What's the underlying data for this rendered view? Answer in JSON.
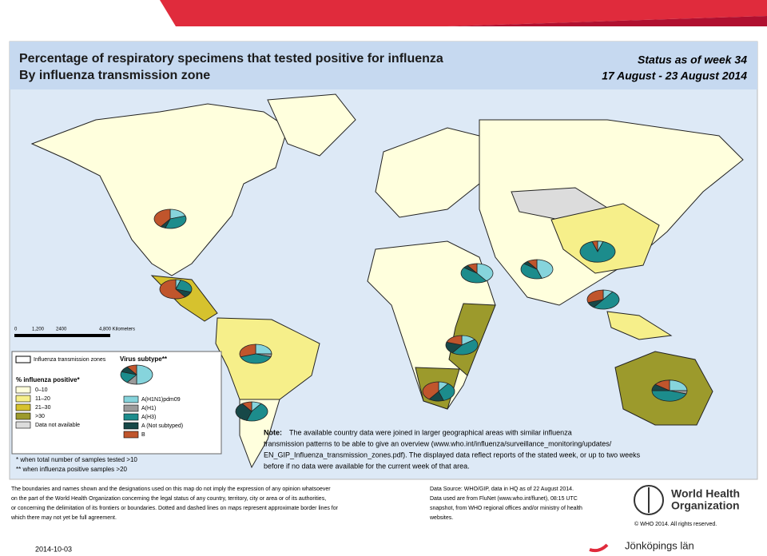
{
  "header": {
    "title": "Percentage of respiratory specimens that tested positive for influenza",
    "subtitle": "By influenza transmission zone",
    "status": "Status as of week 34",
    "period": "17 August - 23 August 2014"
  },
  "scale": {
    "labels": [
      "0",
      "1,200",
      "2400",
      "4,800 Kilometers"
    ]
  },
  "legend": {
    "zones_label": "Influenza transmission zones",
    "subtype_title": "Virus subtype**",
    "positivity_title": "% influenza positive*",
    "positivity": [
      {
        "label": "0–10",
        "color": "#ffffdd"
      },
      {
        "label": "11–20",
        "color": "#f6ef8a"
      },
      {
        "label": "21–30",
        "color": "#d6c22e"
      },
      {
        "label": ">30",
        "color": "#9c9a2c"
      },
      {
        "label": "Data not available",
        "color": "#dcdcdc"
      }
    ],
    "subtypes": [
      {
        "label": "A(H1N1)pdm09",
        "color": "#86d4dc"
      },
      {
        "label": "A(H1)",
        "color": "#9a9a9a"
      },
      {
        "label": "A(H3)",
        "color": "#1c8c8c"
      },
      {
        "label": "A (Not subtyped)",
        "color": "#174848"
      },
      {
        "label": "B",
        "color": "#c0552c"
      }
    ]
  },
  "footnotes": [
    "*  when total number of samples tested >10",
    "** when influenza positive samples >20"
  ],
  "note": {
    "label": "Note:",
    "lines": [
      "The available country data were joined in larger geographical areas with similar influenza",
      "transmission patterns to be able to give an overview (www.who.int/influenza/surveillance_monitoring/updates/",
      "EN_GIP_Influenza_transmission_zones.pdf). The displayed data reflect reports of the stated week, or up to two weeks",
      "before if no data were available for the current week of that area."
    ]
  },
  "pies": [
    {
      "values": [
        20,
        0,
        35,
        5,
        40
      ]
    },
    {
      "values": [
        5,
        0,
        25,
        10,
        60
      ]
    },
    {
      "values": [
        25,
        5,
        40,
        0,
        30
      ]
    },
    {
      "values": [
        10,
        0,
        45,
        35,
        10
      ]
    },
    {
      "values": [
        40,
        0,
        45,
        5,
        10
      ]
    },
    {
      "values": [
        45,
        0,
        40,
        5,
        10
      ]
    },
    {
      "values": [
        5,
        0,
        90,
        0,
        5
      ]
    },
    {
      "values": [
        10,
        0,
        50,
        10,
        30
      ]
    },
    {
      "values": [
        15,
        0,
        45,
        20,
        20
      ]
    },
    {
      "values": [
        10,
        0,
        35,
        15,
        40
      ]
    },
    {
      "values": [
        25,
        5,
        45,
        10,
        15
      ]
    },
    {
      "values": [
        50,
        10,
        20,
        10,
        10
      ]
    }
  ],
  "disclaimer": [
    "The boundaries and names shown and the designations used on this map do not imply the expression of any opinion whatsoever",
    "on the part of the World Health Organization concerning the legal status of any country, territory, city or area or of its authorities,",
    "or concerning the delimitation of its frontiers or boundaries. Dotted and dashed lines on maps represent approximate border lines for",
    "which there may not yet be full agreement."
  ],
  "source": [
    "Data Source: WHO/GIP, data in HQ as of 22 August 2014.",
    "Data used are from FluNet (www.who.int/flunet), 08:15 UTC",
    "snapshot, from WHO regional offices and/or ministry of health",
    "websites."
  ],
  "who": {
    "line1": "World Health",
    "line2": "Organization",
    "copyright": "© WHO 2014. All rights reserved."
  },
  "footer": {
    "date": "2014-10-03",
    "region": "Jönköpings län"
  }
}
